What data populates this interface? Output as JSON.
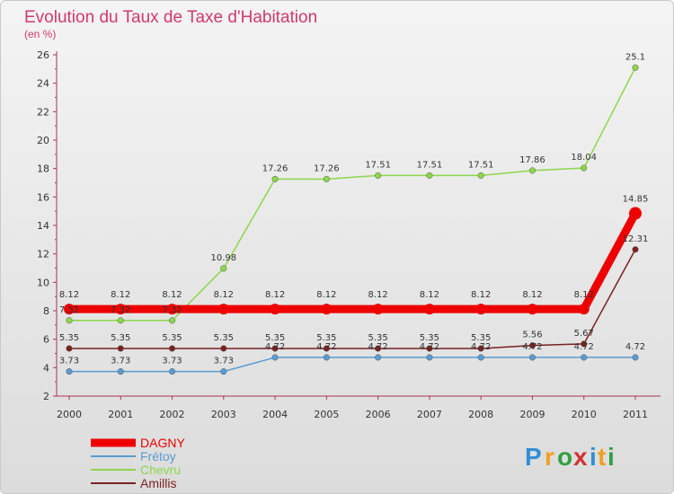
{
  "chart_data": {
    "type": "line",
    "title": "Evolution du Taux de Taxe d'Habitation",
    "subtitle": "(en %)",
    "x": [
      "2000",
      "2001",
      "2002",
      "2003",
      "2004",
      "2005",
      "2006",
      "2007",
      "2008",
      "2009",
      "2010",
      "2011"
    ],
    "ylim": [
      2,
      26
    ],
    "yticks": [
      2,
      4,
      6,
      8,
      10,
      12,
      14,
      16,
      18,
      20,
      22,
      24,
      26
    ],
    "grid": false,
    "legend_position": "bottom-left",
    "series": [
      {
        "name": "DAGNY",
        "color": "#ee0000",
        "values": [
          8.12,
          8.12,
          8.12,
          8.12,
          8.12,
          8.12,
          8.12,
          8.12,
          8.12,
          8.12,
          8.12,
          14.85
        ],
        "labels": [
          "8.12",
          "8.12",
          "8.12",
          "8.12",
          "8.12",
          "8.12",
          "8.12",
          "8.12",
          "8.12",
          "8.12",
          "8.12",
          "14.85"
        ]
      },
      {
        "name": "Frétoy",
        "color": "#5b9bd1",
        "values": [
          3.73,
          3.73,
          3.73,
          3.73,
          4.72,
          4.72,
          4.72,
          4.72,
          4.72,
          4.72,
          4.72,
          4.72
        ],
        "labels": [
          "3.73",
          "3.73",
          "3.73",
          "3.73",
          "4.72",
          "4.72",
          "4.72",
          "4.72",
          "4.72",
          "4.72",
          "4.72",
          "4.72"
        ]
      },
      {
        "name": "Chevru",
        "color": "#8ed64c",
        "values": [
          7.32,
          7.32,
          7.32,
          10.98,
          17.26,
          17.26,
          17.51,
          17.51,
          17.51,
          17.86,
          18.04,
          25.1
        ],
        "labels": [
          "7.32",
          "7.32",
          "7.32",
          "10.98",
          "17.26",
          "17.26",
          "17.51",
          "17.51",
          "17.51",
          "17.86",
          "18.04",
          "25.1"
        ]
      },
      {
        "name": "Amillis",
        "color": "#7a2222",
        "values": [
          5.35,
          5.35,
          5.35,
          5.35,
          5.35,
          5.35,
          5.35,
          5.35,
          5.35,
          5.56,
          5.67,
          12.31
        ],
        "labels": [
          "5.35",
          "5.35",
          "5.35",
          "5.35",
          "5.35",
          "5.35",
          "5.35",
          "5.35",
          "5.35",
          "5.56",
          "5.67",
          "12.31"
        ]
      }
    ]
  },
  "branding": {
    "logo_letters": [
      "P",
      "r",
      "o",
      "x",
      "i",
      "t",
      "i"
    ],
    "logo_colors": [
      "#2f8fd6",
      "#f0a020",
      "#30a040",
      "#d03030",
      "#2f8fd6",
      "#f0a020",
      "#30a040"
    ]
  }
}
